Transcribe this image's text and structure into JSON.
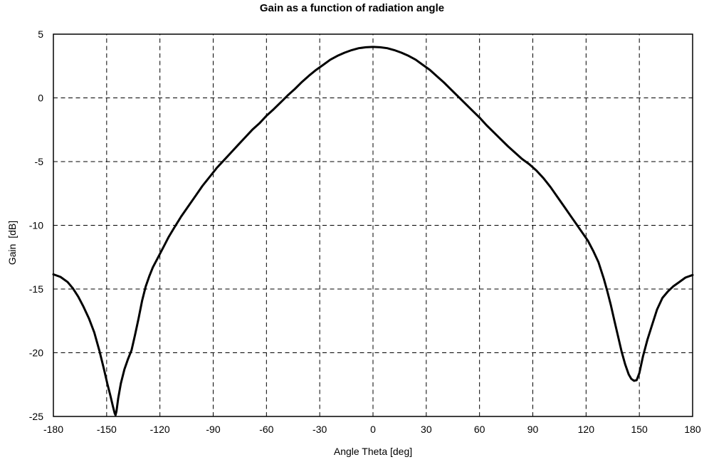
{
  "colors": {
    "background": "#ffffff",
    "curve": "#000000",
    "grid": "#000000",
    "axis": "#000000",
    "text": "#000000"
  },
  "chart_data": {
    "type": "line",
    "title": "Gain as a function of radiation angle",
    "xlabel": "Angle Theta [deg]",
    "ylabel": "Gain  [dB]",
    "xlim": [
      -180,
      180
    ],
    "ylim": [
      -25,
      5
    ],
    "x_ticks": [
      -180,
      -150,
      -120,
      -90,
      -60,
      -30,
      0,
      30,
      60,
      90,
      120,
      150,
      180
    ],
    "y_ticks": [
      5,
      0,
      -5,
      -10,
      -15,
      -20,
      -25
    ],
    "grid": "dashed",
    "legend": "none",
    "series": [
      {
        "name": "Gain",
        "x": [
          -180,
          -176,
          -172,
          -169,
          -166,
          -163,
          -160,
          -157,
          -154,
          -151.5,
          -149.5,
          -148,
          -146.5,
          -145.5,
          -145,
          -144.5,
          -143.5,
          -142,
          -140,
          -138,
          -136,
          -134,
          -132,
          -130,
          -128,
          -126,
          -124,
          -121,
          -118,
          -115,
          -112,
          -108,
          -104,
          -100,
          -96,
          -92,
          -88,
          -84,
          -80,
          -76,
          -72,
          -68,
          -64,
          -60,
          -56,
          -52,
          -48,
          -44,
          -40,
          -36,
          -32,
          -28,
          -24,
          -20,
          -16,
          -12,
          -8,
          -4,
          0,
          4,
          8,
          12,
          16,
          20,
          24,
          28,
          32,
          36,
          40,
          44,
          48,
          52,
          56,
          60,
          64,
          68,
          72,
          76,
          80,
          84,
          88,
          92,
          96,
          100,
          104,
          108,
          112,
          115,
          118,
          121,
          124,
          127,
          130,
          132,
          134,
          136,
          138,
          140,
          142,
          144,
          145.5,
          147,
          148.5,
          150,
          152,
          154.5,
          157,
          160,
          163,
          166,
          169,
          172,
          176,
          180
        ],
        "y": [
          -13.85,
          -14.05,
          -14.45,
          -14.95,
          -15.6,
          -16.4,
          -17.3,
          -18.4,
          -19.9,
          -21.3,
          -22.5,
          -23.3,
          -24.2,
          -24.75,
          -24.9,
          -24.6,
          -23.6,
          -22.4,
          -21.3,
          -20.5,
          -19.8,
          -18.6,
          -17.3,
          -15.9,
          -14.8,
          -14.0,
          -13.3,
          -12.5,
          -11.7,
          -10.9,
          -10.2,
          -9.3,
          -8.5,
          -7.7,
          -6.9,
          -6.2,
          -5.5,
          -4.9,
          -4.3,
          -3.7,
          -3.1,
          -2.5,
          -2.0,
          -1.4,
          -0.9,
          -0.35,
          0.2,
          0.7,
          1.25,
          1.75,
          2.2,
          2.6,
          3.0,
          3.3,
          3.55,
          3.75,
          3.9,
          3.97,
          4.0,
          3.97,
          3.9,
          3.75,
          3.55,
          3.3,
          3.0,
          2.6,
          2.2,
          1.7,
          1.2,
          0.65,
          0.1,
          -0.45,
          -1.0,
          -1.55,
          -2.15,
          -2.7,
          -3.25,
          -3.8,
          -4.3,
          -4.8,
          -5.2,
          -5.7,
          -6.3,
          -7.0,
          -7.8,
          -8.6,
          -9.4,
          -10.0,
          -10.6,
          -11.2,
          -12.0,
          -12.9,
          -14.2,
          -15.2,
          -16.3,
          -17.5,
          -18.7,
          -19.9,
          -20.9,
          -21.7,
          -22.05,
          -22.2,
          -22.15,
          -21.6,
          -20.3,
          -19.0,
          -17.9,
          -16.6,
          -15.7,
          -15.2,
          -14.8,
          -14.5,
          -14.1,
          -13.9
        ]
      }
    ]
  }
}
